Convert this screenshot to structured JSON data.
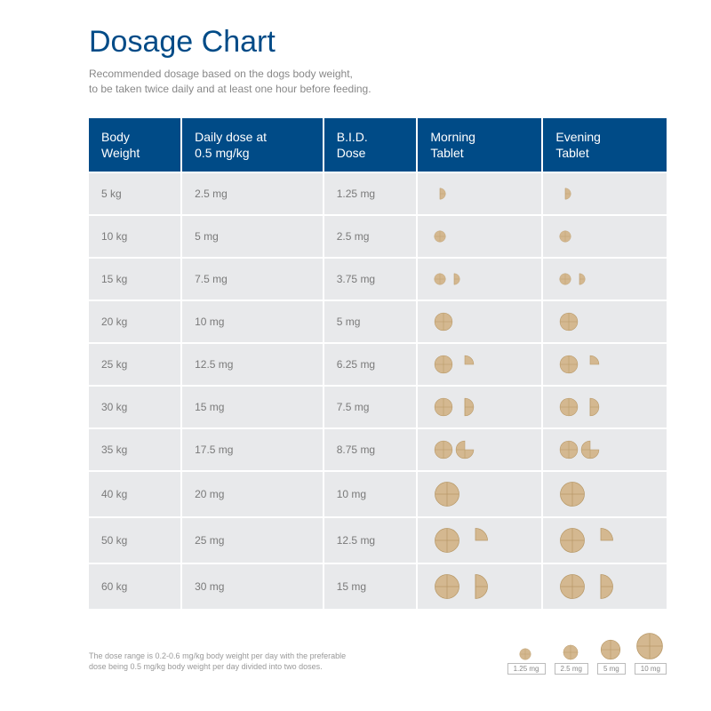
{
  "title": "Dosage Chart",
  "subtitle_line1": "Recommended dosage based on the dogs body weight,",
  "subtitle_line2": "to be taken twice daily and at least one hour before feeding.",
  "columns": {
    "c0a": "Body",
    "c0b": "Weight",
    "c1a": "Daily dose at",
    "c1b": "0.5 mg/kg",
    "c2a": "B.I.D.",
    "c2b": "Dose",
    "c3a": "Morning",
    "c3b": "Tablet",
    "c4a": "Evening",
    "c4b": "Tablet"
  },
  "rows": [
    {
      "weight": "5 kg",
      "daily": "2.5 mg",
      "bid": "1.25 mg",
      "morning": [
        {
          "kind": "half",
          "size": "s"
        }
      ],
      "evening": [
        {
          "kind": "half",
          "size": "s"
        }
      ]
    },
    {
      "weight": "10 kg",
      "daily": "5 mg",
      "bid": "2.5 mg",
      "morning": [
        {
          "kind": "whole",
          "size": "s"
        }
      ],
      "evening": [
        {
          "kind": "whole",
          "size": "s"
        }
      ]
    },
    {
      "weight": "15 kg",
      "daily": "7.5 mg",
      "bid": "3.75 mg",
      "morning": [
        {
          "kind": "whole",
          "size": "s"
        },
        {
          "kind": "half",
          "size": "s"
        }
      ],
      "evening": [
        {
          "kind": "whole",
          "size": "s"
        },
        {
          "kind": "half",
          "size": "s"
        }
      ]
    },
    {
      "weight": "20 kg",
      "daily": "10 mg",
      "bid": "5 mg",
      "morning": [
        {
          "kind": "whole",
          "size": "m"
        }
      ],
      "evening": [
        {
          "kind": "whole",
          "size": "m"
        }
      ]
    },
    {
      "weight": "25 kg",
      "daily": "12.5 mg",
      "bid": "6.25 mg",
      "morning": [
        {
          "kind": "whole",
          "size": "m"
        },
        {
          "kind": "quarter",
          "size": "m"
        }
      ],
      "evening": [
        {
          "kind": "whole",
          "size": "m"
        },
        {
          "kind": "quarter",
          "size": "m"
        }
      ]
    },
    {
      "weight": "30 kg",
      "daily": "15 mg",
      "bid": "7.5 mg",
      "morning": [
        {
          "kind": "whole",
          "size": "m"
        },
        {
          "kind": "half",
          "size": "m"
        }
      ],
      "evening": [
        {
          "kind": "whole",
          "size": "m"
        },
        {
          "kind": "half",
          "size": "m"
        }
      ]
    },
    {
      "weight": "35 kg",
      "daily": "17.5 mg",
      "bid": "8.75 mg",
      "morning": [
        {
          "kind": "whole",
          "size": "m"
        },
        {
          "kind": "threequarter",
          "size": "m"
        }
      ],
      "evening": [
        {
          "kind": "whole",
          "size": "m"
        },
        {
          "kind": "threequarter",
          "size": "m"
        }
      ]
    },
    {
      "weight": "40 kg",
      "daily": "20 mg",
      "bid": "10 mg",
      "morning": [
        {
          "kind": "whole",
          "size": "l"
        }
      ],
      "evening": [
        {
          "kind": "whole",
          "size": "l"
        }
      ]
    },
    {
      "weight": "50 kg",
      "daily": "25 mg",
      "bid": "12.5 mg",
      "morning": [
        {
          "kind": "whole",
          "size": "l"
        },
        {
          "kind": "quarter",
          "size": "l"
        }
      ],
      "evening": [
        {
          "kind": "whole",
          "size": "l"
        },
        {
          "kind": "quarter",
          "size": "l"
        }
      ]
    },
    {
      "weight": "60 kg",
      "daily": "30 mg",
      "bid": "15 mg",
      "morning": [
        {
          "kind": "whole",
          "size": "l"
        },
        {
          "kind": "half",
          "size": "l"
        }
      ],
      "evening": [
        {
          "kind": "whole",
          "size": "l"
        },
        {
          "kind": "half",
          "size": "l"
        }
      ]
    }
  ],
  "legend_text_line1": "The dose range is 0.2-0.6 mg/kg body weight per day with the preferable",
  "legend_text_line2": "dose being 0.5 mg/kg body weight per day divided into two doses.",
  "legend": [
    {
      "label": "1.25 mg",
      "size": 14
    },
    {
      "label": "2.5 mg",
      "size": 18
    },
    {
      "label": "5 mg",
      "size": 24
    },
    {
      "label": "10 mg",
      "size": 32
    }
  ],
  "colors": {
    "header_bg": "#004b87",
    "row_bg": "#e8e9eb",
    "tablet_fill": "#d4b890",
    "tablet_stroke": "#b89968",
    "text_muted": "#7a7a7a"
  }
}
